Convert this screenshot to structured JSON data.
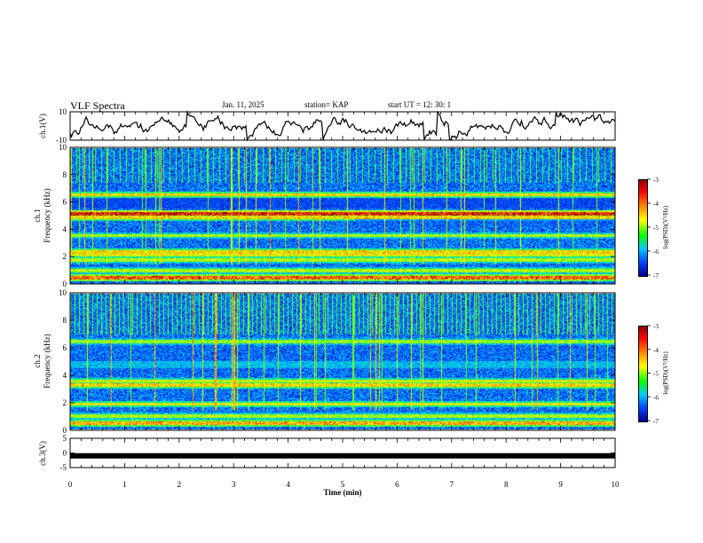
{
  "header": {
    "title": "VLF Spectra",
    "date": "Jan. 11, 2025",
    "station": "station= KAP",
    "start": "start  UT =   12: 30: 1"
  },
  "chart_data": [
    {
      "type": "line",
      "panel": "ch1-voltage",
      "ylabel": "ch.1(V)",
      "ylim": [
        -10,
        10
      ],
      "yticks": [
        "10",
        "-10"
      ],
      "xlim": [
        0,
        10
      ],
      "x_unit": "min",
      "approx_signal": "noisy waveform oscillating roughly between -6 and +6 V with brief excursions to the limits"
    },
    {
      "type": "heatmap",
      "panel": "ch1-spectrogram",
      "ylabel_line1": "ch.1",
      "ylabel_line2": "Frequency (kHz)",
      "ylim": [
        0,
        10
      ],
      "yticks": [
        "0",
        "2",
        "4",
        "6",
        "8",
        "10"
      ],
      "xlim": [
        0,
        10
      ],
      "bands_khz": [
        {
          "f": 0.5,
          "level": -3.5
        },
        {
          "f": 1.0,
          "level": -4.5
        },
        {
          "f": 1.8,
          "level": -4.5
        },
        {
          "f": 2.2,
          "level": -4.2
        },
        {
          "f": 2.4,
          "level": -4.0
        },
        {
          "f": 3.6,
          "level": -4.5
        },
        {
          "f": 4.9,
          "level": -4.0
        },
        {
          "f": 5.2,
          "level": -3.2
        },
        {
          "f": 6.6,
          "level": -4.0
        }
      ],
      "colorbar": {
        "label": "log(PSD)(V²/Hz)",
        "ticks": [
          "-3",
          "-4",
          "-5",
          "-6",
          "-7"
        ],
        "range": [
          -7,
          -3
        ]
      }
    },
    {
      "type": "heatmap",
      "panel": "ch2-spectrogram",
      "ylabel_line1": "ch.2",
      "ylabel_line2": "Frequency (kHz)",
      "ylim": [
        0,
        10
      ],
      "yticks": [
        "0",
        "2",
        "4",
        "6",
        "8",
        "10"
      ],
      "xlim": [
        0,
        10
      ],
      "bands_khz": [
        {
          "f": 0.5,
          "level": -3.8
        },
        {
          "f": 1.0,
          "level": -4.5
        },
        {
          "f": 1.9,
          "level": -4.2
        },
        {
          "f": 3.3,
          "level": -4.0
        },
        {
          "f": 3.6,
          "level": -4.3
        },
        {
          "f": 4.8,
          "level": -4.2
        },
        {
          "f": 6.5,
          "level": -4.6
        }
      ],
      "colorbar": {
        "label": "log(PSD)(V²/Hz)",
        "ticks": [
          "-3",
          "-4",
          "-5",
          "-6",
          "-7"
        ],
        "range": [
          -7,
          -3
        ]
      }
    },
    {
      "type": "line",
      "panel": "ch3-voltage",
      "ylabel": "ch.3(V)",
      "ylim": [
        -5,
        5
      ],
      "yticks": [
        "5",
        "0",
        "-5"
      ],
      "xlim": [
        0,
        10
      ],
      "approx_signal": "flat thick trace at about -1 V"
    }
  ],
  "xaxis": {
    "label": "Time  (min)",
    "ticks": [
      "0",
      "1",
      "2",
      "3",
      "4",
      "5",
      "6",
      "7",
      "8",
      "9",
      "10"
    ]
  },
  "colors": {
    "background_low": "#00ff66",
    "trace": "#000000"
  }
}
